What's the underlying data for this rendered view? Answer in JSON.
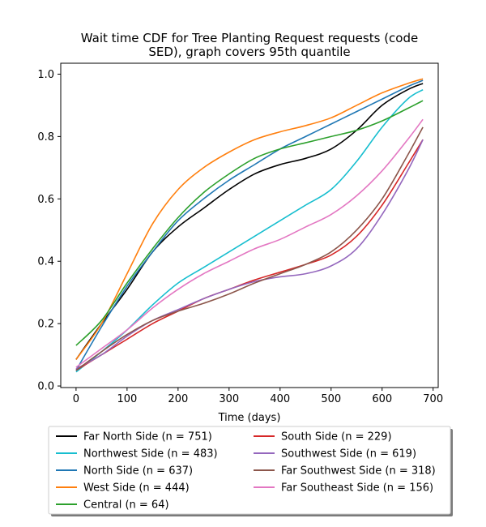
{
  "chart_data": {
    "type": "line",
    "title_lines": [
      "Wait time CDF for Tree Planting Request  requests (code",
      "SED), graph covers 95th quantile"
    ],
    "xlabel": "Time (days)",
    "ylabel": "",
    "xlim": [
      -30,
      710
    ],
    "ylim": [
      -0.005,
      1.035
    ],
    "xticks": [
      0,
      100,
      200,
      300,
      400,
      500,
      600,
      700
    ],
    "yticks": [
      0.0,
      0.2,
      0.4,
      0.6,
      0.8,
      1.0
    ],
    "ytick_labels": [
      "0.0",
      "0.2",
      "0.4",
      "0.6",
      "0.8",
      "1.0"
    ],
    "grid": false,
    "legend_position": "below",
    "x": [
      0,
      50,
      100,
      150,
      200,
      250,
      300,
      350,
      400,
      450,
      500,
      550,
      600,
      650,
      680
    ],
    "series": [
      {
        "name": "Far North Side (n = 751)",
        "color": "#000000",
        "values": [
          0.085,
          0.2,
          0.31,
          0.43,
          0.51,
          0.57,
          0.63,
          0.68,
          0.71,
          0.73,
          0.76,
          0.82,
          0.9,
          0.95,
          0.97
        ]
      },
      {
        "name": "Northwest Side (n = 483)",
        "color": "#17becf",
        "values": [
          0.045,
          0.11,
          0.18,
          0.26,
          0.33,
          0.38,
          0.43,
          0.48,
          0.53,
          0.58,
          0.63,
          0.72,
          0.83,
          0.92,
          0.95
        ]
      },
      {
        "name": "North Side (n = 637)",
        "color": "#1f77b4",
        "values": [
          0.05,
          0.19,
          0.32,
          0.43,
          0.53,
          0.6,
          0.66,
          0.71,
          0.76,
          0.8,
          0.84,
          0.88,
          0.92,
          0.96,
          0.98
        ]
      },
      {
        "name": "West Side (n = 444)",
        "color": "#ff7f0e",
        "values": [
          0.085,
          0.2,
          0.36,
          0.52,
          0.63,
          0.7,
          0.75,
          0.79,
          0.815,
          0.835,
          0.86,
          0.9,
          0.94,
          0.97,
          0.985
        ]
      },
      {
        "name": "Central (n = 64)",
        "color": "#2ca02c",
        "values": [
          0.13,
          0.21,
          0.33,
          0.44,
          0.54,
          0.62,
          0.68,
          0.73,
          0.76,
          0.78,
          0.8,
          0.82,
          0.85,
          0.89,
          0.915
        ]
      },
      {
        "name": "South Side (n = 229)",
        "color": "#d62728",
        "values": [
          0.05,
          0.1,
          0.15,
          0.2,
          0.24,
          0.28,
          0.31,
          0.34,
          0.365,
          0.39,
          0.42,
          0.48,
          0.58,
          0.71,
          0.79
        ]
      },
      {
        "name": "Southwest Side (n = 619)",
        "color": "#9467bd",
        "values": [
          0.055,
          0.1,
          0.16,
          0.21,
          0.245,
          0.28,
          0.31,
          0.335,
          0.35,
          0.36,
          0.385,
          0.44,
          0.55,
          0.69,
          0.79
        ]
      },
      {
        "name": "Far Southwest Side (n = 318)",
        "color": "#8c564b",
        "values": [
          0.05,
          0.11,
          0.165,
          0.21,
          0.24,
          0.265,
          0.295,
          0.33,
          0.36,
          0.39,
          0.43,
          0.5,
          0.6,
          0.74,
          0.83
        ]
      },
      {
        "name": "Far Southeast Side (n = 156)",
        "color": "#e377c2",
        "values": [
          0.06,
          0.12,
          0.18,
          0.25,
          0.31,
          0.36,
          0.4,
          0.44,
          0.47,
          0.51,
          0.55,
          0.61,
          0.69,
          0.79,
          0.855
        ]
      }
    ]
  }
}
